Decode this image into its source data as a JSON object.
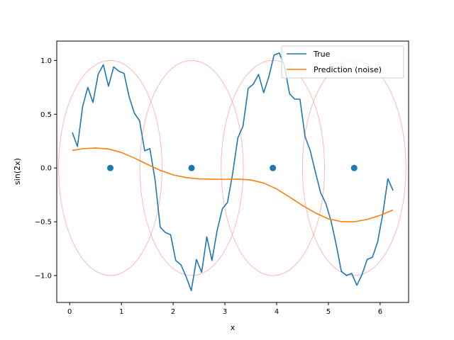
{
  "chart_data": {
    "type": "line",
    "title": "",
    "xlabel": "x",
    "ylabel": "sin(2x)",
    "xlim": [
      -0.25,
      6.55
    ],
    "ylim": [
      -1.25,
      1.18
    ],
    "xticks": [
      0,
      1,
      2,
      3,
      4,
      5,
      6
    ],
    "yticks": [
      -1.0,
      -0.5,
      0.0,
      0.5,
      1.0
    ],
    "xtick_labels": [
      "0",
      "1",
      "2",
      "3",
      "4",
      "5",
      "6"
    ],
    "ytick_labels": [
      "−1.0",
      "−0.5",
      "0.0",
      "0.5",
      "1.0"
    ],
    "grid": false,
    "legend_position": "top-right",
    "series": [
      {
        "name": "True",
        "color": "#1f77b4",
        "x": [
          0.05,
          0.15,
          0.25,
          0.35,
          0.45,
          0.55,
          0.65,
          0.75,
          0.85,
          0.95,
          1.05,
          1.15,
          1.25,
          1.35,
          1.45,
          1.55,
          1.65,
          1.75,
          1.85,
          1.95,
          2.05,
          2.15,
          2.25,
          2.35,
          2.45,
          2.55,
          2.65,
          2.75,
          2.85,
          2.95,
          3.05,
          3.15,
          3.25,
          3.35,
          3.45,
          3.55,
          3.65,
          3.75,
          3.85,
          3.95,
          4.05,
          4.15,
          4.25,
          4.35,
          4.45,
          4.55,
          4.65,
          4.75,
          4.85,
          4.95,
          5.05,
          5.15,
          5.25,
          5.35,
          5.45,
          5.55,
          5.65,
          5.75,
          5.85,
          5.95,
          6.05,
          6.15,
          6.25
        ],
        "y": [
          0.33,
          0.2,
          0.57,
          0.75,
          0.61,
          0.87,
          0.96,
          0.76,
          0.94,
          0.9,
          0.88,
          0.66,
          0.51,
          0.44,
          0.16,
          0.18,
          -0.11,
          -0.55,
          -0.6,
          -0.62,
          -0.86,
          -0.9,
          -1.01,
          -1.14,
          -0.85,
          -0.97,
          -0.64,
          -0.86,
          -0.58,
          -0.38,
          -0.32,
          -0.05,
          0.28,
          0.39,
          0.74,
          0.78,
          0.87,
          0.7,
          0.85,
          1.05,
          1.07,
          0.95,
          0.69,
          0.64,
          0.64,
          0.29,
          0.16,
          -0.04,
          -0.23,
          -0.33,
          -0.49,
          -0.71,
          -0.96,
          -1.0,
          -0.98,
          -1.09,
          -0.99,
          -0.85,
          -0.83,
          -0.69,
          -0.43,
          -0.1,
          -0.21
        ]
      },
      {
        "name": "Prediction (noise)",
        "color": "#ff7f0e",
        "x": [
          0.05,
          0.25,
          0.5,
          0.75,
          1.0,
          1.25,
          1.5,
          1.75,
          2.0,
          2.25,
          2.5,
          2.75,
          3.0,
          3.25,
          3.5,
          3.75,
          4.0,
          4.25,
          4.5,
          4.75,
          5.0,
          5.25,
          5.5,
          5.75,
          6.0,
          6.25
        ],
        "y": [
          0.163,
          0.179,
          0.186,
          0.177,
          0.144,
          0.093,
          0.034,
          -0.022,
          -0.064,
          -0.089,
          -0.101,
          -0.104,
          -0.105,
          -0.103,
          -0.111,
          -0.14,
          -0.195,
          -0.27,
          -0.348,
          -0.418,
          -0.473,
          -0.498,
          -0.5,
          -0.478,
          -0.44,
          -0.39
        ]
      }
    ],
    "centers": {
      "color": "#1f77b4",
      "x": [
        0.785,
        2.356,
        3.927,
        5.498
      ],
      "y": [
        0,
        0,
        0,
        0
      ]
    },
    "ellipses": {
      "color": "#ff9999",
      "cx": [
        0.785,
        2.356,
        3.927,
        5.498
      ],
      "cy": [
        0,
        0,
        0,
        0
      ],
      "rx": [
        1.0,
        1.0,
        1.0,
        1.0
      ],
      "ry": [
        1.0,
        1.0,
        1.0,
        1.0
      ]
    }
  }
}
